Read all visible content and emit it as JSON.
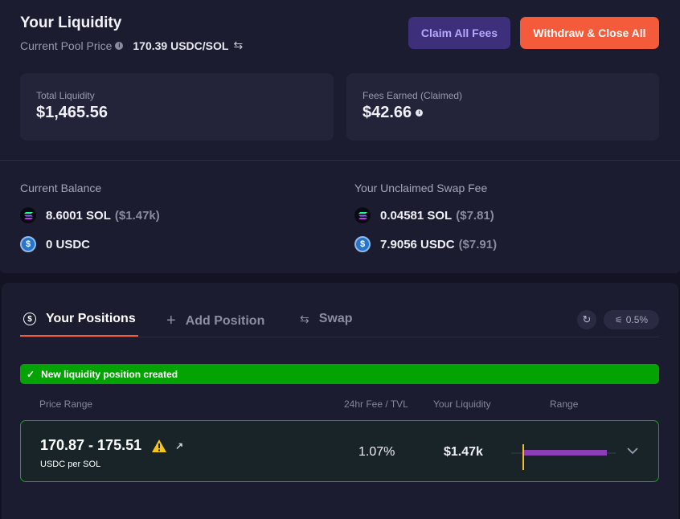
{
  "header": {
    "title": "Your Liquidity",
    "pool_price_label": "Current Pool Price",
    "pool_price_value": "170.39 USDC/SOL",
    "claim_button": "Claim All Fees",
    "withdraw_button": "Withdraw & Close All"
  },
  "stats": {
    "total_liquidity_label": "Total Liquidity",
    "total_liquidity_value": "$1,465.56",
    "fees_earned_label": "Fees Earned (Claimed)",
    "fees_earned_value": "$42.66"
  },
  "balance": {
    "heading": "Current Balance",
    "sol_amount": "8.6001 SOL",
    "sol_usd": "($1.47k)",
    "usdc_amount": "0 USDC"
  },
  "unclaimed": {
    "heading": "Your Unclaimed Swap Fee",
    "sol_amount": "0.04581 SOL",
    "sol_usd": "($7.81)",
    "usdc_amount": "7.9056 USDC",
    "usdc_usd": "($7.91)"
  },
  "tabs": [
    {
      "label": "Your Positions",
      "icon": "dollar-circle-icon",
      "active": true
    },
    {
      "label": "Add Position",
      "icon": "plus-icon",
      "active": false
    },
    {
      "label": "Swap",
      "icon": "swap-icon",
      "active": false
    }
  ],
  "slippage": "0.5%",
  "toast": "New liquidity position created",
  "table": {
    "headers": [
      "Price Range",
      "24hr Fee / TVL",
      "Your Liquidity",
      "Range"
    ],
    "rows": [
      {
        "range": "170.87 - 175.51",
        "unit": "USDC per SOL",
        "fee_tvl": "1.07%",
        "liquidity": "$1.47k"
      }
    ]
  },
  "colors": {
    "accent_orange": "#f45b3a",
    "accent_purple": "#3d2f7a",
    "success_green": "#04a304",
    "range_bar": "#8a3fb5",
    "current_price_marker": "#f0c020"
  }
}
